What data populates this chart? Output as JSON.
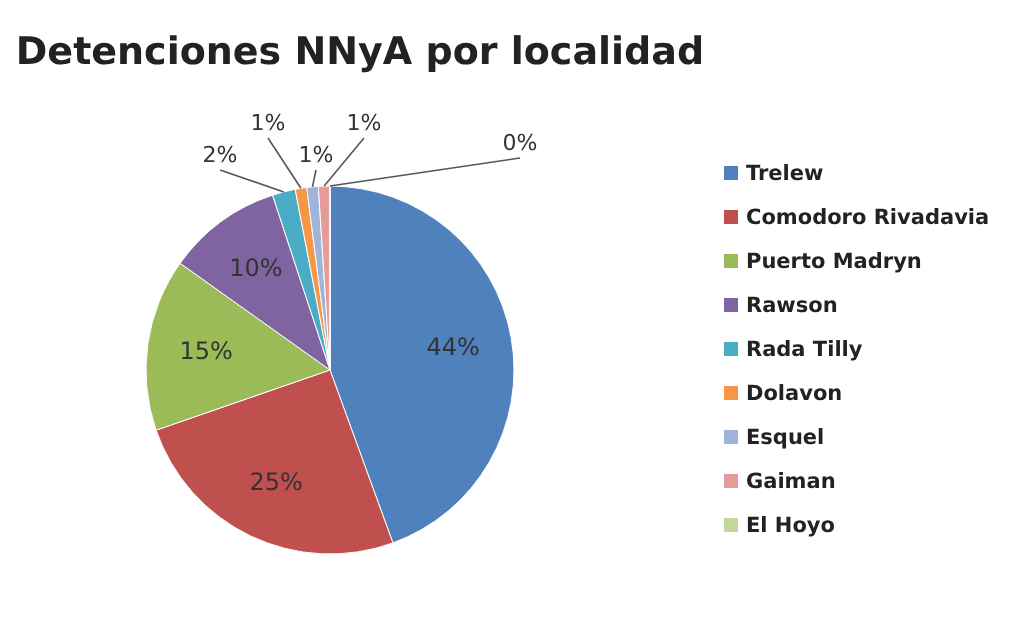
{
  "chart_data": {
    "type": "pie",
    "title": "Detenciones NNyA por localidad",
    "categories": [
      "Trelew",
      "Comodoro Rivadavia",
      "Puerto Madryn",
      "Rawson",
      "Rada  Tilly",
      "Dolavon",
      "Esquel",
      "Gaiman",
      "El Hoyo"
    ],
    "values": [
      44,
      25,
      15,
      10,
      2,
      1,
      1,
      1,
      0
    ],
    "value_labels": [
      "44%",
      "25%",
      "15%",
      "10%",
      "2%",
      "1%",
      "1%",
      "1%",
      "0%"
    ],
    "colors": [
      "#4f81bd",
      "#c0504d",
      "#9bbb59",
      "#8064a2",
      "#4bacc6",
      "#f79646",
      "#9fb4d8",
      "#e39c9a",
      "#c3d69b"
    ],
    "legend": "right"
  }
}
